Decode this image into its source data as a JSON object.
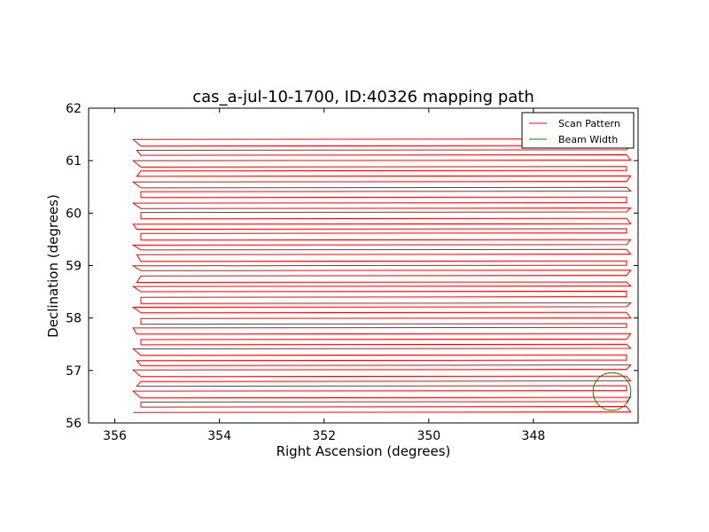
{
  "chart_data": {
    "type": "line",
    "title": "cas_a-jul-10-1700, ID:40326 mapping path",
    "xlabel": "Right Ascension (degrees)",
    "ylabel": "Declination (degrees)",
    "xlim": [
      356.5,
      346.0
    ],
    "ylim": [
      56,
      62
    ],
    "x_ticks": [
      "356",
      "354",
      "352",
      "350",
      "348"
    ],
    "x_tick_values": [
      356,
      354,
      352,
      350,
      348
    ],
    "y_ticks": [
      "56",
      "57",
      "58",
      "59",
      "60",
      "61",
      "62"
    ],
    "y_tick_values": [
      56,
      57,
      58,
      59,
      60,
      61,
      62
    ],
    "grid": false,
    "legend_position": "top-right",
    "series": [
      {
        "name": "Scan Pattern",
        "color": "#ff0000",
        "scan": {
          "ra_left": 355.5,
          "ra_right": 346.2,
          "dec_start": 56.2,
          "dec_end": 61.42,
          "dec_step": 0.1
        }
      },
      {
        "name": "Beam Width",
        "color": "#008000",
        "circle": {
          "center_ra": 346.5,
          "center_dec": 56.6,
          "radius_deg": 0.36
        }
      }
    ]
  }
}
